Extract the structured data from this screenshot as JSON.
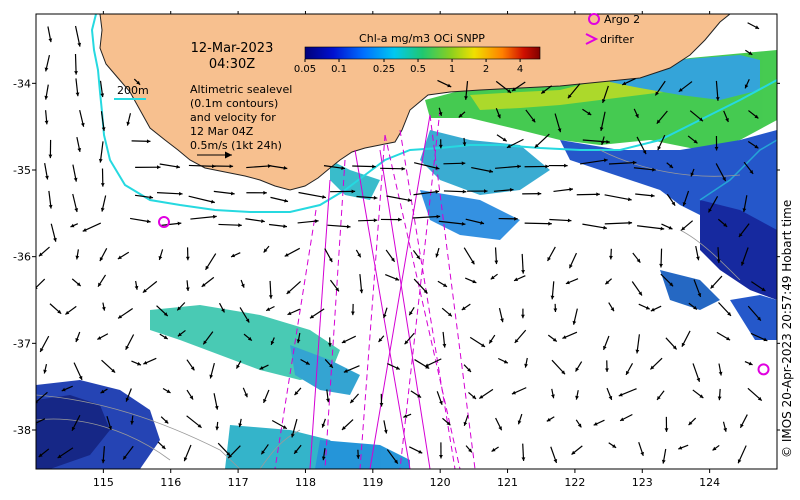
{
  "title": {
    "date": "12-Mar-2023",
    "time": "04:30Z"
  },
  "colorbar": {
    "label": "Chl-a mg/m3 OCi SNPP",
    "ticks": [
      "0.05",
      "0.1",
      "0.25",
      "0.5",
      "1",
      "2",
      "4"
    ],
    "tick_values": [
      0.05,
      0.1,
      0.25,
      0.5,
      1,
      2,
      4
    ],
    "range": [
      0.05,
      6
    ],
    "scale": "log"
  },
  "legend": {
    "argo": "Argo 2",
    "drifter": "drifter",
    "argo_color": "#e000e0",
    "drifter_color": "#e000e0"
  },
  "isobath_label": "200m",
  "isobath_color": "#26d9e0",
  "description_lines": [
    "Altimetric sealevel",
    "(0.1m contours)",
    "and velocity for",
    "12 Mar 04Z",
    "0.5m/s (1kt 24h)"
  ],
  "axes": {
    "x_ticks": [
      "115",
      "116",
      "117",
      "118",
      "119",
      "120",
      "121",
      "122",
      "123",
      "124"
    ],
    "x_values": [
      115,
      116,
      117,
      118,
      119,
      120,
      121,
      122,
      123,
      124
    ],
    "y_ticks": [
      "-34",
      "-35",
      "-36",
      "-37",
      "-38"
    ],
    "y_values": [
      -34,
      -35,
      -36,
      -37,
      -38
    ],
    "lon_range": [
      114.0,
      125.0
    ],
    "lat_range": [
      -38.45,
      -33.2
    ]
  },
  "argo_floats": [
    {
      "lon": 115.9,
      "lat": -35.6
    },
    {
      "lon": 124.8,
      "lat": -37.3
    }
  ],
  "land_color": "#f7c08f",
  "copyright": "© IMOS 20-Apr-2023 20:57:49 Hobart time"
}
